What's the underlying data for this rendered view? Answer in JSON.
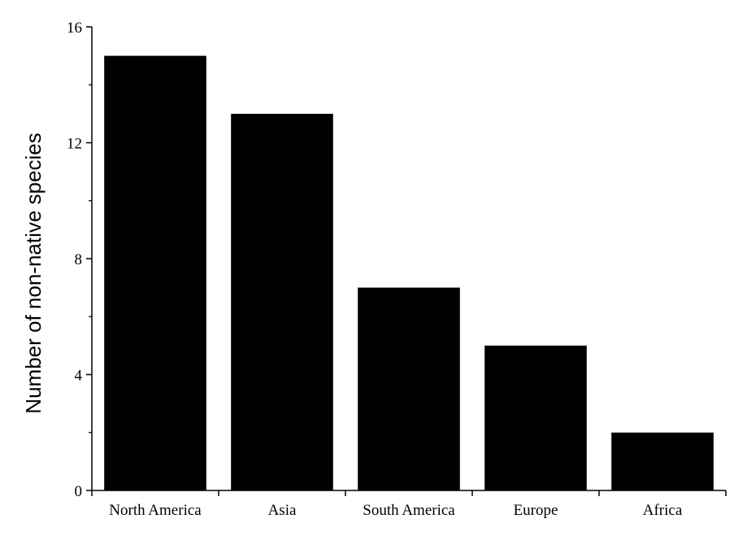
{
  "chart_data": {
    "type": "bar",
    "categories": [
      "North America",
      "Asia",
      "South America",
      "Europe",
      "Africa"
    ],
    "values": [
      15,
      13,
      7,
      5,
      2
    ],
    "title": "",
    "xlabel": "",
    "ylabel": "Number of non-native species",
    "ylim": [
      0,
      16
    ],
    "yticks": [
      0,
      4,
      8,
      12,
      16
    ],
    "grid": false,
    "bar_color": "#000000"
  }
}
